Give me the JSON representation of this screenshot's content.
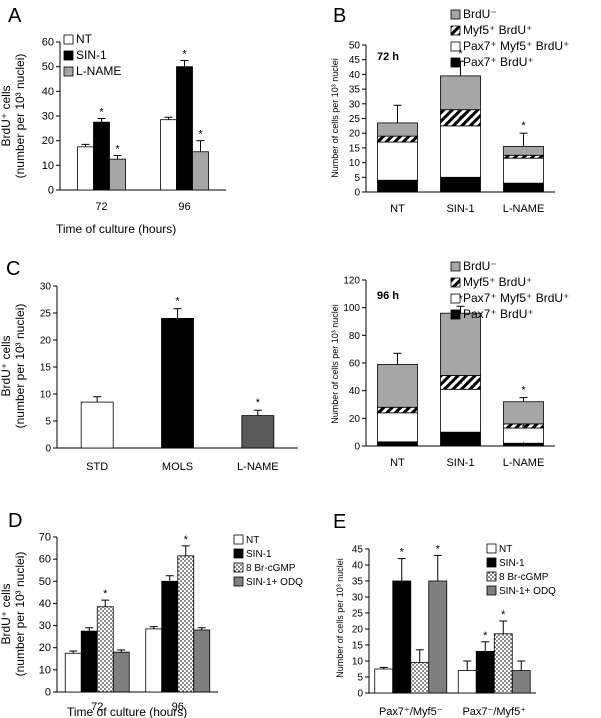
{
  "panel_letters": [
    "A",
    "B",
    "C",
    "D",
    "E"
  ],
  "chart_data": [
    {
      "panel": "A",
      "type": "bar",
      "categories": [
        "72",
        "96"
      ],
      "series": [
        {
          "name": "NT",
          "values": [
            17.5,
            28.5
          ],
          "errors": [
            1,
            1
          ],
          "star": [
            false,
            false
          ],
          "fill": "#ffffff"
        },
        {
          "name": "SIN-1",
          "values": [
            27.5,
            50
          ],
          "errors": [
            1.5,
            2.5
          ],
          "star": [
            true,
            true
          ],
          "fill": "#000000"
        },
        {
          "name": "L-NAME",
          "values": [
            12.5,
            15.5
          ],
          "errors": [
            1.5,
            4.5
          ],
          "star": [
            true,
            true
          ],
          "fill": "#a6a6a6"
        }
      ],
      "ylim": [
        0,
        60
      ],
      "yticks": [
        0,
        10,
        20,
        30,
        40,
        50,
        60
      ],
      "ylabel_line1": "BrdU⁺ cells",
      "ylabel_line2": "(number per 10³ nuclei)",
      "xlabel": "Time of culture (hours)",
      "legend": "top-left"
    },
    {
      "panel": "B",
      "type": "bar",
      "stacked": true,
      "annotation": "72 h",
      "categories": [
        "NT",
        "SIN-1",
        "L-NAME"
      ],
      "series": [
        {
          "name": "Pax7⁺ BrdU⁺",
          "values": [
            4,
            5,
            3
          ],
          "fill": "#000000"
        },
        {
          "name": "Pax7⁺ Myf5⁺ BrdU⁺",
          "values": [
            13,
            17.5,
            8.5
          ],
          "fill": "#ffffff"
        },
        {
          "name": "Myf5⁺ BrdU⁺",
          "values": [
            2,
            5.5,
            1
          ],
          "fill": "hatch"
        },
        {
          "name": "BrdU⁻",
          "values": [
            4.5,
            11.5,
            3
          ],
          "fill": "#a6a6a6"
        }
      ],
      "errors": [
        6,
        5,
        4.5
      ],
      "stars": [
        [],
        [
          [
            3,
            0.5
          ],
          [
            4,
            1
          ]
        ],
        [
          [
            3,
            1
          ]
        ]
      ],
      "ylim": [
        0,
        50
      ],
      "yticks": [
        0,
        5,
        10,
        15,
        20,
        25,
        30,
        35,
        40,
        45,
        50
      ],
      "ylabel": "Number of cells per 10³ nuclei",
      "legend": "top-right"
    },
    {
      "panel": "C",
      "type": "bar",
      "categories": [
        "STD",
        "MOLS",
        "L-NAME"
      ],
      "values": [
        8.5,
        24,
        6
      ],
      "errors": [
        1,
        1.8,
        1
      ],
      "star": [
        false,
        true,
        true
      ],
      "fills": [
        "#ffffff",
        "#000000",
        "#595959"
      ],
      "ylim": [
        0,
        30
      ],
      "yticks": [
        0,
        5,
        10,
        15,
        20,
        25,
        30
      ],
      "ylabel_line1": "BrdU⁺ cells",
      "ylabel_line2": "(number per 10³ nuclei)"
    },
    {
      "panel": "",
      "type": "bar",
      "stacked": true,
      "annotation": "96 h",
      "categories": [
        "NT",
        "SIN-1",
        "L-NAME"
      ],
      "series": [
        {
          "name": "Pax7⁺ BrdU⁺",
          "values": [
            3,
            10,
            2
          ],
          "fill": "#000000"
        },
        {
          "name": "Pax7⁺ Myf5⁺ BrdU⁺",
          "values": [
            21,
            31,
            11
          ],
          "fill": "#ffffff"
        },
        {
          "name": "Myf5⁺ BrdU⁺",
          "values": [
            4,
            10,
            3
          ],
          "fill": "hatch"
        },
        {
          "name": "BrdU⁻",
          "values": [
            31,
            45,
            16
          ],
          "fill": "#a6a6a6"
        }
      ],
      "errors": [
        8,
        5,
        3
      ],
      "stars": [
        [],
        [
          [
            1,
            0.5
          ],
          [
            3,
            0.5
          ],
          [
            4,
            1
          ]
        ],
        [
          [
            1,
            0.5
          ],
          [
            3,
            0.5
          ],
          [
            4,
            1
          ]
        ]
      ],
      "ylim": [
        0,
        120
      ],
      "yticks": [
        0,
        20,
        40,
        60,
        80,
        100,
        120
      ],
      "ylabel": "Number of cells per 10³ nuclei",
      "legend": "top-right"
    },
    {
      "panel": "D",
      "type": "bar",
      "categories": [
        "72",
        "96"
      ],
      "series": [
        {
          "name": "NT",
          "values": [
            17.5,
            28.5
          ],
          "errors": [
            1,
            1
          ],
          "star": [
            false,
            false
          ],
          "fill": "#ffffff"
        },
        {
          "name": "SIN-1",
          "values": [
            27.5,
            50
          ],
          "errors": [
            1.5,
            2.5
          ],
          "star": [
            false,
            false
          ],
          "fill": "#000000"
        },
        {
          "name": "8 Br-cGMP",
          "values": [
            38.5,
            61.5
          ],
          "errors": [
            3,
            4.5
          ],
          "star": [
            true,
            true
          ],
          "fill": "dots"
        },
        {
          "name": "SIN-1+ ODQ",
          "values": [
            18,
            28
          ],
          "errors": [
            1,
            1
          ],
          "star": [
            false,
            false
          ],
          "fill": "#7f7f7f"
        }
      ],
      "ylim": [
        0,
        70
      ],
      "yticks": [
        0,
        10,
        20,
        30,
        40,
        50,
        60,
        70
      ],
      "ylabel_line1": "BrdU⁺ cells",
      "ylabel_line2": "(number per 10³ nuclei)",
      "xlabel": "Time of culture (hours)",
      "legend": "top-right"
    },
    {
      "panel": "E",
      "type": "bar",
      "categories": [
        "Pax7⁺/Myf5⁻",
        "Pax7⁻/Myf5⁺"
      ],
      "series": [
        {
          "name": "NT",
          "values": [
            7.5,
            7
          ],
          "errors": [
            0.5,
            3
          ],
          "star": [
            false,
            false
          ],
          "fill": "#ffffff"
        },
        {
          "name": "SIN-1",
          "values": [
            35,
            13
          ],
          "errors": [
            7,
            3
          ],
          "star": [
            true,
            true
          ],
          "fill": "#000000"
        },
        {
          "name": "8 Br-cGMP",
          "values": [
            9.5,
            18.5
          ],
          "errors": [
            4,
            4
          ],
          "star": [
            false,
            true
          ],
          "fill": "dots"
        },
        {
          "name": "SIN-1+ ODQ",
          "values": [
            35,
            7
          ],
          "errors": [
            8,
            3
          ],
          "star": [
            true,
            false
          ],
          "fill": "#7f7f7f"
        }
      ],
      "ylim": [
        0,
        45
      ],
      "yticks": [
        0,
        5,
        10,
        15,
        20,
        25,
        30,
        35,
        40,
        45
      ],
      "ylabel": "Number of cells per 10³ nuclei",
      "legend": "top-right"
    }
  ]
}
